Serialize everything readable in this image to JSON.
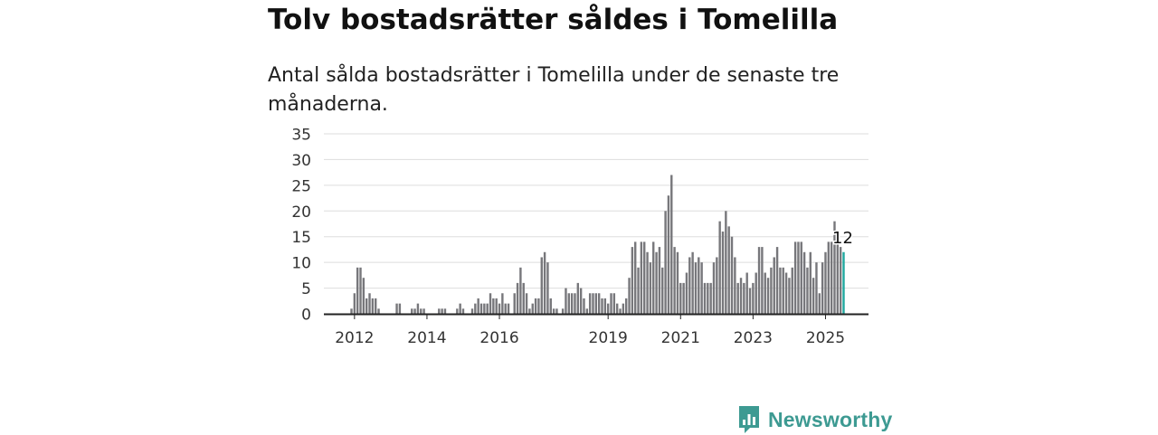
{
  "title": "Tolv bostadsrätter såldes i Tomelilla",
  "subtitle": "Antal sålda bostadsrätter i Tomelilla under de senaste tre månaderna.",
  "brand": {
    "name": "Newsworthy",
    "color": "#3d9a92"
  },
  "colors": {
    "bar": "#77777b",
    "highlight": "#1fa89f",
    "grid": "#dddddd",
    "axis": "#222222"
  },
  "chart_data": {
    "type": "bar",
    "title": "",
    "xlabel": "",
    "ylabel": "",
    "ylim": [
      0,
      35
    ],
    "yticks": [
      0,
      5,
      10,
      15,
      20,
      25,
      30,
      35
    ],
    "grid": true,
    "x_start": "2011-12",
    "x_end": "2025-07",
    "xticks": [
      {
        "label": "2012",
        "date": "2012-01"
      },
      {
        "label": "2014",
        "date": "2014-01"
      },
      {
        "label": "2016",
        "date": "2016-01"
      },
      {
        "label": "2019",
        "date": "2019-01"
      },
      {
        "label": "2021",
        "date": "2021-01"
      },
      {
        "label": "2023",
        "date": "2023-01"
      },
      {
        "label": "2025",
        "date": "2025-01"
      }
    ],
    "months": [
      "2011-12",
      "2012-01",
      "2012-02",
      "2012-03",
      "2012-04",
      "2012-05",
      "2012-06",
      "2012-07",
      "2012-08",
      "2012-09",
      "2012-10",
      "2012-11",
      "2012-12",
      "2013-01",
      "2013-02",
      "2013-03",
      "2013-04",
      "2013-05",
      "2013-06",
      "2013-07",
      "2013-08",
      "2013-09",
      "2013-10",
      "2013-11",
      "2013-12",
      "2014-01",
      "2014-02",
      "2014-03",
      "2014-04",
      "2014-05",
      "2014-06",
      "2014-07",
      "2014-08",
      "2014-09",
      "2014-10",
      "2014-11",
      "2014-12",
      "2015-01",
      "2015-02",
      "2015-03",
      "2015-04",
      "2015-05",
      "2015-06",
      "2015-07",
      "2015-08",
      "2015-09",
      "2015-10",
      "2015-11",
      "2015-12",
      "2016-01",
      "2016-02",
      "2016-03",
      "2016-04",
      "2016-05",
      "2016-06",
      "2016-07",
      "2016-08",
      "2016-09",
      "2016-10",
      "2016-11",
      "2016-12",
      "2017-01",
      "2017-02",
      "2017-03",
      "2017-04",
      "2017-05",
      "2017-06",
      "2017-07",
      "2017-08",
      "2017-09",
      "2017-10",
      "2017-11",
      "2017-12",
      "2018-01",
      "2018-02",
      "2018-03",
      "2018-04",
      "2018-05",
      "2018-06",
      "2018-07",
      "2018-08",
      "2018-09",
      "2018-10",
      "2018-11",
      "2018-12",
      "2019-01",
      "2019-02",
      "2019-03",
      "2019-04",
      "2019-05",
      "2019-06",
      "2019-07",
      "2019-08",
      "2019-09",
      "2019-10",
      "2019-11",
      "2019-12",
      "2020-01",
      "2020-02",
      "2020-03",
      "2020-04",
      "2020-05",
      "2020-06",
      "2020-07",
      "2020-08",
      "2020-09",
      "2020-10",
      "2020-11",
      "2020-12",
      "2021-01",
      "2021-02",
      "2021-03",
      "2021-04",
      "2021-05",
      "2021-06",
      "2021-07",
      "2021-08",
      "2021-09",
      "2021-10",
      "2021-11",
      "2021-12",
      "2022-01",
      "2022-02",
      "2022-03",
      "2022-04",
      "2022-05",
      "2022-06",
      "2022-07",
      "2022-08",
      "2022-09",
      "2022-10",
      "2022-11",
      "2022-12",
      "2023-01",
      "2023-02",
      "2023-03",
      "2023-04",
      "2023-05",
      "2023-06",
      "2023-07",
      "2023-08",
      "2023-09",
      "2023-10",
      "2023-11",
      "2023-12",
      "2024-01",
      "2024-02",
      "2024-03",
      "2024-04",
      "2024-05",
      "2024-06",
      "2024-07",
      "2024-08",
      "2024-09",
      "2024-10",
      "2024-11",
      "2024-12",
      "2025-01",
      "2025-02",
      "2025-03",
      "2025-04",
      "2025-05",
      "2025-06",
      "2025-07"
    ],
    "values": [
      1,
      4,
      9,
      9,
      7,
      3,
      4,
      3,
      3,
      1,
      0,
      0,
      0,
      0,
      0,
      2,
      2,
      0,
      0,
      0,
      1,
      1,
      2,
      1,
      1,
      0,
      0,
      0,
      0,
      1,
      1,
      1,
      0,
      0,
      0,
      1,
      2,
      1,
      0,
      0,
      1,
      2,
      3,
      2,
      2,
      2,
      4,
      3,
      3,
      2,
      4,
      2,
      2,
      0,
      4,
      6,
      9,
      6,
      4,
      1,
      2,
      3,
      3,
      11,
      12,
      10,
      3,
      1,
      1,
      0,
      1,
      5,
      4,
      4,
      4,
      6,
      5,
      3,
      1,
      4,
      4,
      4,
      4,
      3,
      3,
      2,
      4,
      4,
      2,
      1,
      2,
      3,
      7,
      13,
      14,
      9,
      14,
      14,
      12,
      10,
      14,
      12,
      13,
      9,
      20,
      23,
      27,
      13,
      12,
      6,
      6,
      8,
      11,
      12,
      10,
      11,
      10,
      6,
      6,
      6,
      10,
      11,
      18,
      16,
      20,
      17,
      15,
      11,
      6,
      7,
      6,
      8,
      5,
      6,
      8,
      13,
      13,
      8,
      7,
      9,
      11,
      13,
      9,
      9,
      8,
      7,
      9,
      14,
      14,
      14,
      12,
      9,
      12,
      7,
      10,
      4,
      10,
      12,
      14,
      14,
      18,
      14,
      13,
      12
    ],
    "highlight_index": 163,
    "annotation": {
      "text": "12",
      "index": 163
    }
  }
}
